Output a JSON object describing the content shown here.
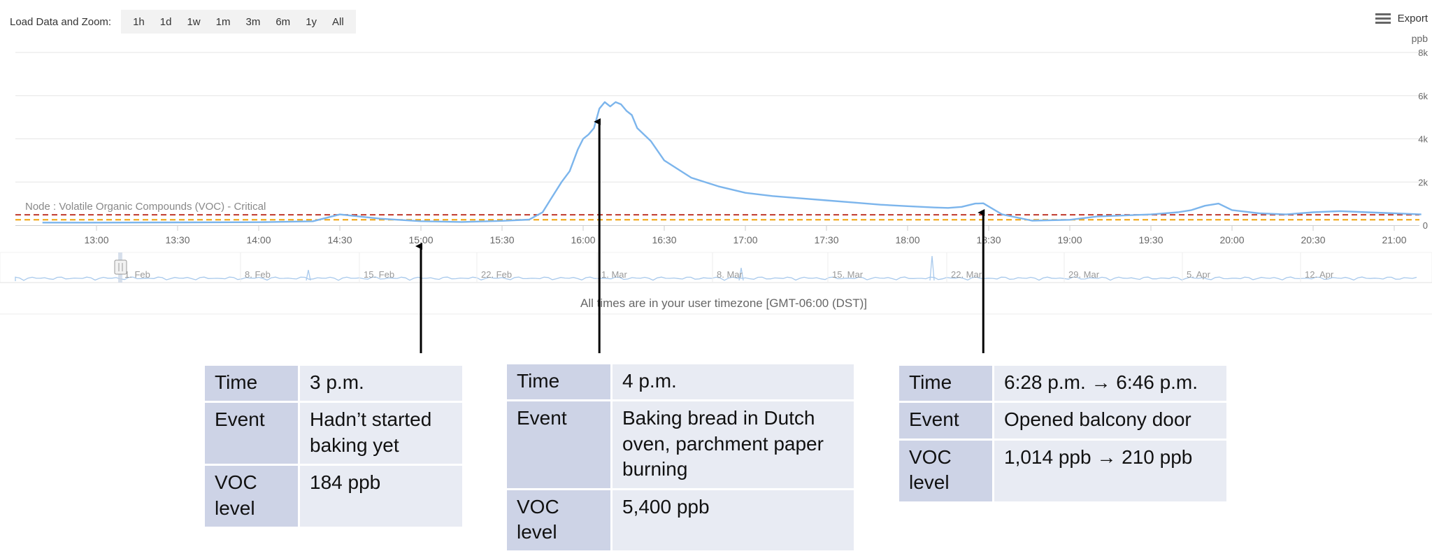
{
  "toolbar": {
    "label": "Load Data and Zoom:",
    "buttons": [
      "1h",
      "1d",
      "1w",
      "1m",
      "3m",
      "6m",
      "1y",
      "All"
    ],
    "export_label": "Export"
  },
  "chart_data": {
    "type": "line",
    "y_unit": "ppb",
    "ylim": [
      0,
      8000
    ],
    "y_ticks": [
      "0",
      "2k",
      "4k",
      "6k",
      "8k"
    ],
    "x_ticks": [
      "13:00",
      "13:30",
      "14:00",
      "14:30",
      "15:00",
      "15:30",
      "16:00",
      "16:30",
      "17:00",
      "17:30",
      "18:00",
      "18:30",
      "19:00",
      "19:30",
      "20:00",
      "20:30",
      "21:00"
    ],
    "grid": true,
    "colors": {
      "series": "#7cb5ec",
      "critical": "#c0392b",
      "warning": "#f0a30a",
      "text": "#666666"
    },
    "threshold_label": "Node : Volatile Organic Compounds (VOC) - Critical",
    "thresholds": [
      {
        "name": "Critical",
        "value": 480,
        "color": "#c0392b"
      },
      {
        "name": "Warning",
        "value": 250,
        "color": "#f0a30a"
      }
    ],
    "series": [
      {
        "x": [
          "12:40",
          "13:00",
          "13:30",
          "14:00",
          "14:20",
          "14:30",
          "14:45",
          "15:00",
          "15:15",
          "15:30",
          "15:40",
          "15:45",
          "15:48",
          "15:52",
          "15:55",
          "15:58",
          "16:00",
          "16:02",
          "16:04",
          "16:06",
          "16:08",
          "16:10",
          "16:12",
          "16:14",
          "16:16",
          "16:18",
          "16:20",
          "16:25",
          "16:30",
          "16:35",
          "16:40",
          "16:50",
          "17:00",
          "17:10",
          "17:20",
          "17:30",
          "17:40",
          "17:50",
          "18:00",
          "18:10",
          "18:15",
          "18:20",
          "18:25",
          "18:28",
          "18:35",
          "18:46",
          "19:00",
          "19:10",
          "19:20",
          "19:30",
          "19:40",
          "19:45",
          "19:50",
          "19:55",
          "20:00",
          "20:10",
          "20:20",
          "20:30",
          "20:40",
          "20:50",
          "21:00",
          "21:10"
        ],
        "values": [
          120,
          120,
          130,
          140,
          180,
          500,
          300,
          184,
          150,
          200,
          260,
          600,
          1200,
          2000,
          2500,
          3500,
          4000,
          4200,
          4500,
          5400,
          5700,
          5500,
          5700,
          5600,
          5300,
          5100,
          4500,
          3900,
          3000,
          2600,
          2200,
          1800,
          1500,
          1350,
          1250,
          1150,
          1050,
          950,
          880,
          820,
          800,
          850,
          1000,
          1014,
          500,
          210,
          250,
          400,
          450,
          500,
          600,
          700,
          900,
          1000,
          700,
          550,
          500,
          600,
          650,
          600,
          550,
          500
        ]
      }
    ],
    "navigator": {
      "labels": [
        "1. Feb",
        "8. Feb",
        "15. Feb",
        "22. Feb",
        "1. Mar",
        "8. Mar",
        "15. Mar",
        "22. Mar",
        "29. Mar",
        "5. Apr",
        "12. Apr"
      ]
    }
  },
  "footer": {
    "timezone": "All times are in your user timezone [GMT-06:00 (DST)]"
  },
  "annotations": [
    {
      "target": "15:00",
      "rows": [
        {
          "key": "Time",
          "value": "3 p.m."
        },
        {
          "key": "Event",
          "value": "Hadn’t started baking yet"
        },
        {
          "key": "VOC level",
          "value": "184 ppb"
        }
      ]
    },
    {
      "target": "16:06",
      "rows": [
        {
          "key": "Time",
          "value": "4 p.m."
        },
        {
          "key": "Event",
          "value": "Baking bread in Dutch oven, parchment paper burning"
        },
        {
          "key": "VOC level",
          "value": "5,400 ppb"
        }
      ]
    },
    {
      "target": "18:28",
      "rows": [
        {
          "key": "Time",
          "value": "6:28 p.m. → 6:46 p.m."
        },
        {
          "key": "Event",
          "value": "Opened balcony door"
        },
        {
          "key": "VOC level",
          "value": "1,014 ppb → 210 ppb"
        }
      ]
    }
  ]
}
